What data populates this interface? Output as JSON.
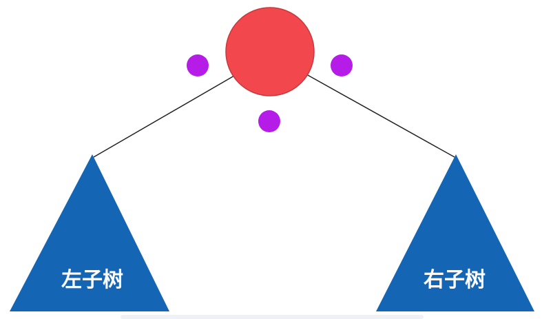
{
  "diagram": {
    "root": {
      "color": "#f2484d",
      "stroke": "#c8383c"
    },
    "dots": {
      "color": "#b61ce8",
      "items": [
        "left-dot",
        "right-dot",
        "bottom-dot"
      ]
    },
    "subtrees": {
      "color": "#1565b5",
      "left": {
        "label": "左子树"
      },
      "right": {
        "label": "右子树"
      }
    },
    "edge_color": "#222222"
  }
}
